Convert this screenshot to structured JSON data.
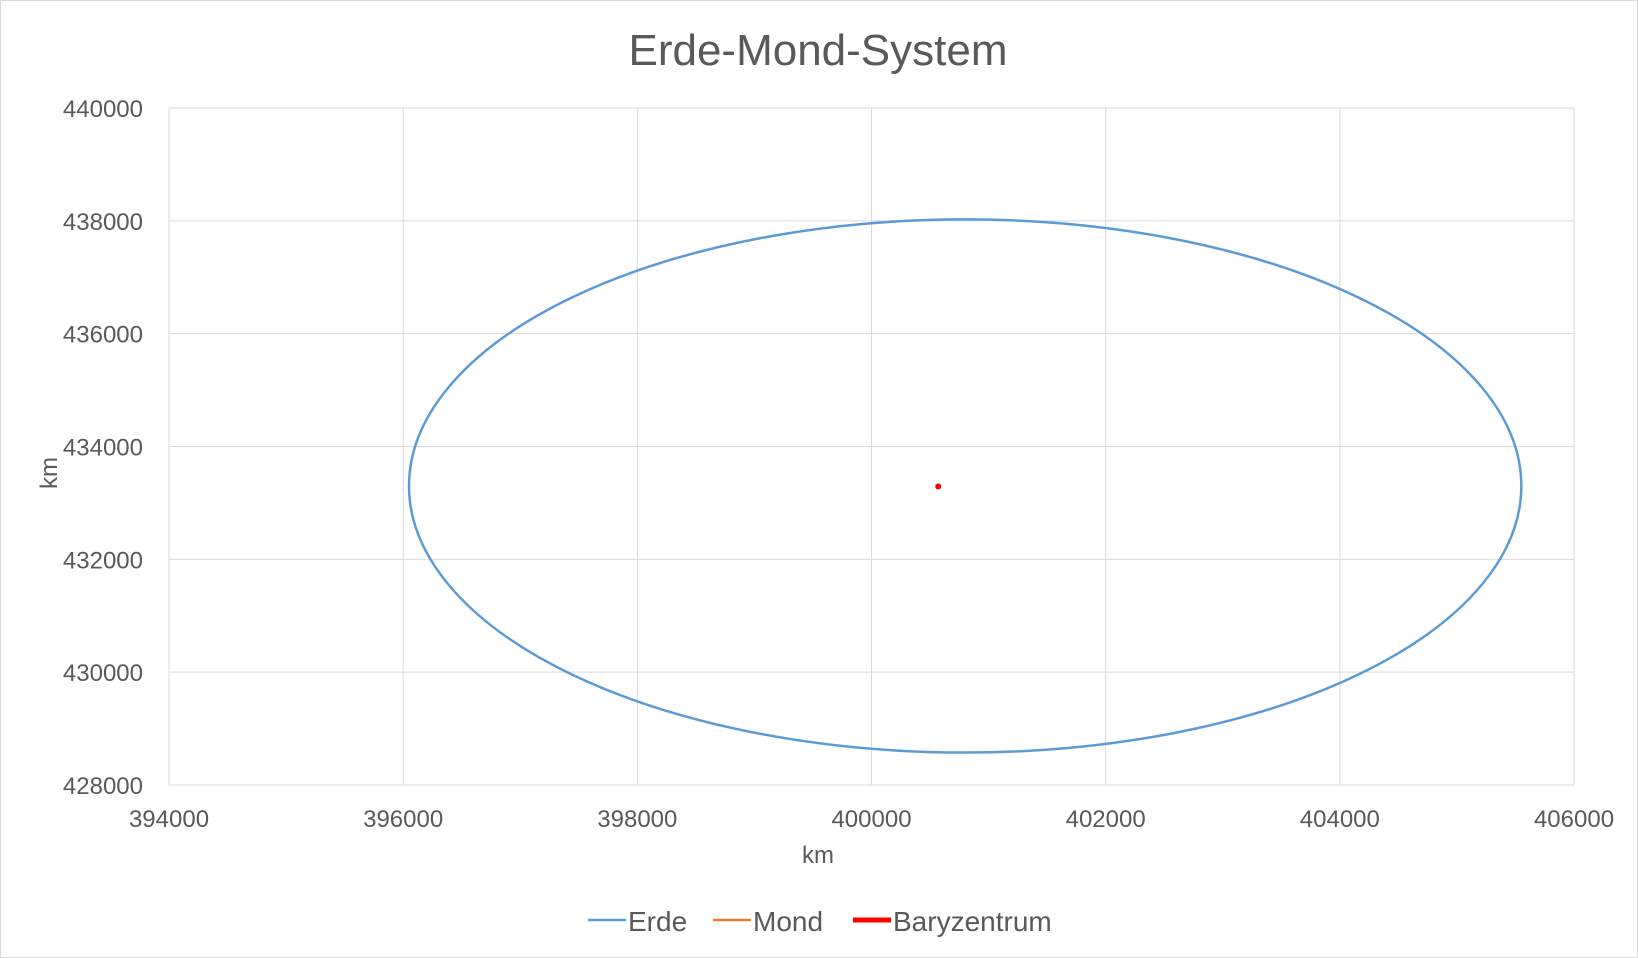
{
  "chart_data": {
    "type": "scatter",
    "title": "Erde-Mond-System",
    "xlabel": "km",
    "ylabel": "km",
    "xlim": [
      394000,
      406000
    ],
    "ylim": [
      428000,
      440000
    ],
    "xticks": [
      394000,
      396000,
      398000,
      400000,
      402000,
      404000,
      406000
    ],
    "yticks": [
      428000,
      430000,
      432000,
      434000,
      436000,
      438000,
      440000
    ],
    "grid": true,
    "legend_position": "bottom",
    "series": [
      {
        "name": "Erde",
        "color": "#5b9bd5",
        "shape": "ellipse-orbit",
        "center": [
          400800,
          433300
        ],
        "x_range": [
          396050,
          405550
        ],
        "y_range": [
          428580,
          438030
        ]
      },
      {
        "name": "Mond",
        "color": "#ed7d31",
        "points": []
      },
      {
        "name": "Baryzentrum",
        "color": "#ff0000",
        "points": [
          [
            400570,
            433290
          ]
        ]
      }
    ]
  }
}
